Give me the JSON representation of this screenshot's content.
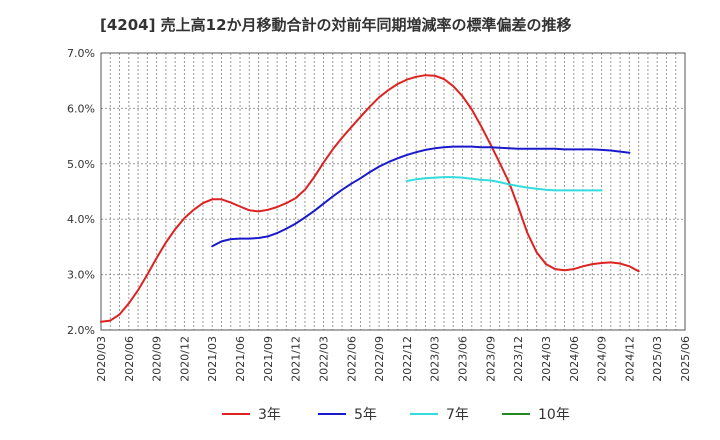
{
  "chart_data": {
    "type": "line",
    "title": "[4204]  売上高12か月移動合計の対前年同期増減率の標準偏差の推移",
    "xlabel": "",
    "ylabel": "",
    "ylim": [
      2.0,
      7.0
    ],
    "y_ticks": [
      2.0,
      3.0,
      4.0,
      5.0,
      6.0,
      7.0
    ],
    "y_tick_labels": [
      "2.0%",
      "3.0%",
      "4.0%",
      "5.0%",
      "6.0%",
      "7.0%"
    ],
    "x_ticks": [
      "2020/03",
      "2020/06",
      "2020/09",
      "2020/12",
      "2021/03",
      "2021/06",
      "2021/09",
      "2021/12",
      "2022/03",
      "2022/06",
      "2022/09",
      "2022/12",
      "2023/03",
      "2023/06",
      "2023/09",
      "2023/12",
      "2024/03",
      "2024/06",
      "2024/09",
      "2024/12",
      "2025/03",
      "2025/06"
    ],
    "x_start": "2020/03",
    "x_end": "2025/06",
    "grid": true,
    "legend_position": "bottom",
    "series": [
      {
        "name": "3年",
        "color": "#dd2222",
        "start": "2020/03",
        "values": [
          2.15,
          2.17,
          2.28,
          2.48,
          2.72,
          3.0,
          3.3,
          3.58,
          3.82,
          4.02,
          4.17,
          4.29,
          4.36,
          4.36,
          4.3,
          4.23,
          4.16,
          4.14,
          4.17,
          4.22,
          4.29,
          4.38,
          4.53,
          4.76,
          5.02,
          5.26,
          5.47,
          5.66,
          5.85,
          6.03,
          6.2,
          6.33,
          6.44,
          6.52,
          6.57,
          6.6,
          6.59,
          6.53,
          6.4,
          6.22,
          5.98,
          5.68,
          5.36,
          5.02,
          4.67,
          4.23,
          3.75,
          3.4,
          3.19,
          3.1,
          3.08,
          3.1,
          3.15,
          3.19,
          3.21,
          3.22,
          3.2,
          3.15,
          3.06
        ]
      },
      {
        "name": "5年",
        "color": "#1a1acc",
        "start": "2021/03",
        "values": [
          3.51,
          3.6,
          3.64,
          3.65,
          3.65,
          3.66,
          3.69,
          3.75,
          3.83,
          3.92,
          4.03,
          4.15,
          4.28,
          4.41,
          4.53,
          4.64,
          4.74,
          4.85,
          4.95,
          5.03,
          5.1,
          5.16,
          5.21,
          5.25,
          5.28,
          5.3,
          5.31,
          5.31,
          5.31,
          5.3,
          5.3,
          5.29,
          5.28,
          5.27,
          5.27,
          5.27,
          5.27,
          5.27,
          5.26,
          5.26,
          5.26,
          5.26,
          5.25,
          5.24,
          5.22,
          5.2
        ]
      },
      {
        "name": "7年",
        "color": "#33dddd",
        "start": "2022/12",
        "values": [
          4.69,
          4.72,
          4.74,
          4.75,
          4.76,
          4.76,
          4.75,
          4.73,
          4.71,
          4.7,
          4.67,
          4.63,
          4.6,
          4.57,
          4.55,
          4.53,
          4.52,
          4.52,
          4.52,
          4.52,
          4.52,
          4.52
        ]
      },
      {
        "name": "10年",
        "color": "#228822",
        "start": "2025/03",
        "values": []
      }
    ]
  }
}
